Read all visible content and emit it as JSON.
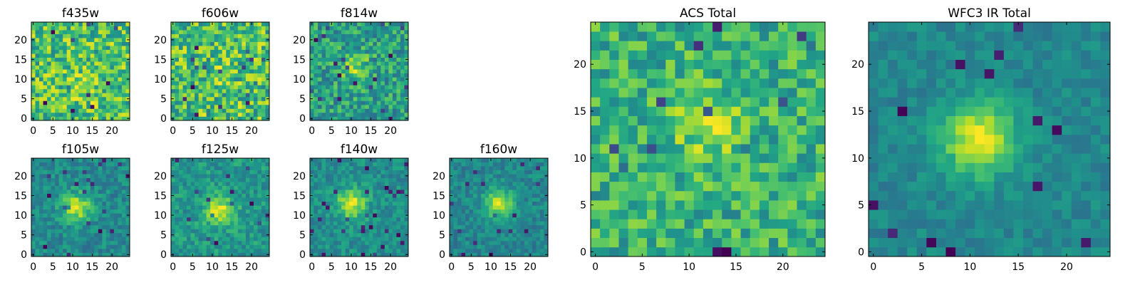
{
  "chart_data": {
    "type": "heatmap",
    "colormap": "viridis",
    "grid_size": 25,
    "panels": [
      {
        "id": "f435w",
        "title": "f435w",
        "xticks": [
          0,
          5,
          10,
          15,
          20
        ],
        "yticks": [
          0,
          5,
          10,
          15,
          20
        ],
        "xlim": [
          -0.5,
          24.5
        ],
        "ylim": [
          -0.5,
          24.5
        ],
        "signal": 0.15,
        "noise": 0.55,
        "base": 0.55,
        "seed": 11,
        "source_center": [
          13,
          8
        ]
      },
      {
        "id": "f606w",
        "title": "f606w",
        "xticks": [
          0,
          5,
          10,
          15,
          20
        ],
        "yticks": [
          0,
          5,
          10,
          15,
          20
        ],
        "xlim": [
          -0.5,
          24.5
        ],
        "ylim": [
          -0.5,
          24.5
        ],
        "signal": 0.05,
        "noise": 0.6,
        "base": 0.55,
        "seed": 23,
        "source_center": [
          12,
          12
        ]
      },
      {
        "id": "f814w",
        "title": "f814w",
        "xticks": [
          0,
          5,
          10,
          15,
          20
        ],
        "yticks": [
          0,
          5,
          10,
          15,
          20
        ],
        "xlim": [
          -0.5,
          24.5
        ],
        "ylim": [
          -0.5,
          24.5
        ],
        "signal": 0.3,
        "noise": 0.5,
        "base": 0.45,
        "seed": 37,
        "source_center": [
          11,
          13
        ]
      },
      {
        "id": "f105w",
        "title": "f105w",
        "xticks": [
          0,
          5,
          10,
          15,
          20
        ],
        "yticks": [
          0,
          5,
          10,
          15,
          20
        ],
        "xlim": [
          -0.5,
          24.5
        ],
        "ylim": [
          -0.5,
          24.5
        ],
        "signal": 0.55,
        "noise": 0.32,
        "base": 0.4,
        "seed": 41,
        "source_center": [
          11,
          12
        ]
      },
      {
        "id": "f125w",
        "title": "f125w",
        "xticks": [
          0,
          5,
          10,
          15,
          20
        ],
        "yticks": [
          0,
          5,
          10,
          15,
          20
        ],
        "xlim": [
          -0.5,
          24.5
        ],
        "ylim": [
          -0.5,
          24.5
        ],
        "signal": 0.5,
        "noise": 0.32,
        "base": 0.42,
        "seed": 53,
        "source_center": [
          12,
          11
        ]
      },
      {
        "id": "f140w",
        "title": "f140w",
        "xticks": [
          0,
          5,
          10,
          15,
          20
        ],
        "yticks": [
          0,
          5,
          10,
          15,
          20
        ],
        "xlim": [
          -0.5,
          24.5
        ],
        "ylim": [
          -0.5,
          24.5
        ],
        "signal": 0.6,
        "noise": 0.32,
        "base": 0.38,
        "seed": 67,
        "source_center": [
          10,
          13
        ]
      },
      {
        "id": "f160w",
        "title": "f160w",
        "xticks": [
          0,
          5,
          10,
          15,
          20
        ],
        "yticks": [
          0,
          5,
          10,
          15,
          20
        ],
        "xlim": [
          -0.5,
          24.5
        ],
        "ylim": [
          -0.5,
          24.5
        ],
        "signal": 0.6,
        "noise": 0.3,
        "base": 0.36,
        "seed": 79,
        "source_center": [
          12,
          13
        ]
      },
      {
        "id": "acs-total",
        "title": "ACS Total",
        "xticks": [
          0,
          5,
          10,
          15,
          20
        ],
        "yticks": [
          0,
          5,
          10,
          15,
          20
        ],
        "xlim": [
          -0.5,
          24.5
        ],
        "ylim": [
          -0.5,
          24.5
        ],
        "signal": 0.25,
        "noise": 0.45,
        "base": 0.5,
        "seed": 97,
        "source_center": [
          12,
          13
        ]
      },
      {
        "id": "wfc3-ir-total",
        "title": "WFC3 IR Total",
        "xticks": [
          0,
          5,
          10,
          15,
          20
        ],
        "yticks": [
          0,
          5,
          10,
          15,
          20
        ],
        "xlim": [
          -0.5,
          24.5
        ],
        "ylim": [
          -0.5,
          24.5
        ],
        "signal": 0.7,
        "noise": 0.22,
        "base": 0.33,
        "seed": 113,
        "source_center": [
          11,
          12
        ]
      }
    ]
  }
}
